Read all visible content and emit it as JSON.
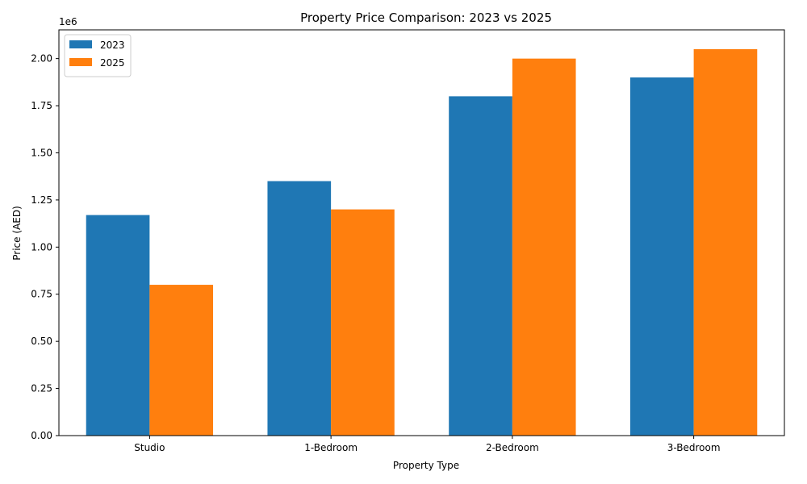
{
  "chart_data": {
    "type": "bar",
    "title": "Property Price Comparison: 2023 vs 2025",
    "xlabel": "Property Type",
    "ylabel": "Price (AED)",
    "y_offset_label": "1e6",
    "categories": [
      "Studio",
      "1-Bedroom",
      "2-Bedroom",
      "3-Bedroom"
    ],
    "series": [
      {
        "name": "2023",
        "color": "#1f77b4",
        "values": [
          1170000,
          1350000,
          1800000,
          1900000
        ]
      },
      {
        "name": "2025",
        "color": "#ff7f0e",
        "values": [
          800000,
          1200000,
          2000000,
          2050000
        ]
      }
    ],
    "ylim": [
      0,
      2152500
    ],
    "yticks": [
      0,
      250000,
      500000,
      750000,
      1000000,
      1250000,
      1500000,
      1750000,
      2000000
    ],
    "ytick_labels": [
      "0.00",
      "0.25",
      "0.50",
      "0.75",
      "1.00",
      "1.25",
      "1.50",
      "1.75",
      "2.00"
    ],
    "grid": false,
    "legend_position": "upper-left"
  }
}
